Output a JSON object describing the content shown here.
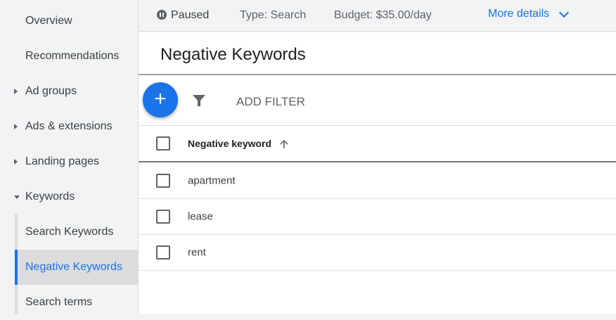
{
  "sidebar": {
    "items": [
      {
        "label": "Overview",
        "caret": "none"
      },
      {
        "label": "Recommendations",
        "caret": "none"
      },
      {
        "label": "Ad groups",
        "caret": "right"
      },
      {
        "label": "Ads & extensions",
        "caret": "right"
      },
      {
        "label": "Landing pages",
        "caret": "right"
      },
      {
        "label": "Keywords",
        "caret": "down"
      },
      {
        "label": "Search Keywords",
        "caret": "none"
      },
      {
        "label": "Negative Keywords",
        "caret": "none",
        "active": true
      },
      {
        "label": "Search terms",
        "caret": "none"
      }
    ]
  },
  "status": {
    "state": "Paused",
    "type": "Type: Search",
    "budget": "Budget: $35.00/day",
    "more": "More details"
  },
  "page": {
    "title": "Negative Keywords",
    "add_filter": "ADD FILTER"
  },
  "table": {
    "header": "Negative keyword",
    "sort": "ascending",
    "rows": [
      "apartment",
      "lease",
      "rent"
    ]
  },
  "colors": {
    "accent": "#1a73e8"
  }
}
